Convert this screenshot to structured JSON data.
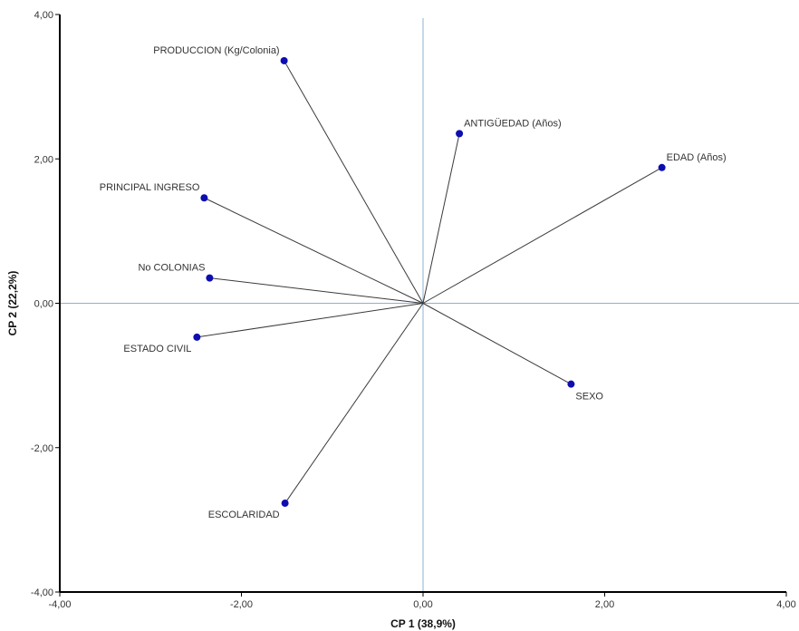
{
  "chart_data": {
    "type": "scatter",
    "subtype": "biplot-vectors",
    "title": "",
    "xlabel": "CP 1 (38,9%)",
    "ylabel": "CP 2 (22,2%)",
    "xlim": [
      -4,
      4
    ],
    "ylim": [
      -4,
      4
    ],
    "xticks": [
      -4,
      -2,
      0,
      2,
      4
    ],
    "yticks": [
      -4,
      -2,
      0,
      2,
      4
    ],
    "xtick_labels": [
      "-4,00",
      "-2,00",
      "0,00",
      "2,00",
      "4,00"
    ],
    "ytick_labels": [
      "-4,00",
      "-2,00",
      "0,00",
      "2,00",
      "4,00"
    ],
    "grid": false,
    "reference_lines": {
      "x": 0,
      "y": 0,
      "color": "#8fb0d0"
    },
    "vector_color": "#3a3a3a",
    "point_color": "#0d0db0",
    "points": [
      {
        "label": "PRODUCCION (Kg/Colonia)",
        "x": -1.53,
        "y": 3.36,
        "label_pos": "upper-left"
      },
      {
        "label": "ANTIGÜEDAD (Años)",
        "x": 0.4,
        "y": 2.35,
        "label_pos": "upper-right"
      },
      {
        "label": "EDAD (Años)",
        "x": 2.63,
        "y": 1.88,
        "label_pos": "upper-right"
      },
      {
        "label": "PRINCIPAL INGRESO",
        "x": -2.41,
        "y": 1.46,
        "label_pos": "upper-left"
      },
      {
        "label": "No COLONIAS",
        "x": -2.35,
        "y": 0.35,
        "label_pos": "upper-left"
      },
      {
        "label": "ESTADO CIVIL",
        "x": -2.49,
        "y": -0.47,
        "label_pos": "lower-left"
      },
      {
        "label": "SEXO",
        "x": 1.63,
        "y": -1.12,
        "label_pos": "lower-right"
      },
      {
        "label": "ESCOLARIDAD",
        "x": -1.52,
        "y": -2.77,
        "label_pos": "lower-left"
      }
    ]
  }
}
